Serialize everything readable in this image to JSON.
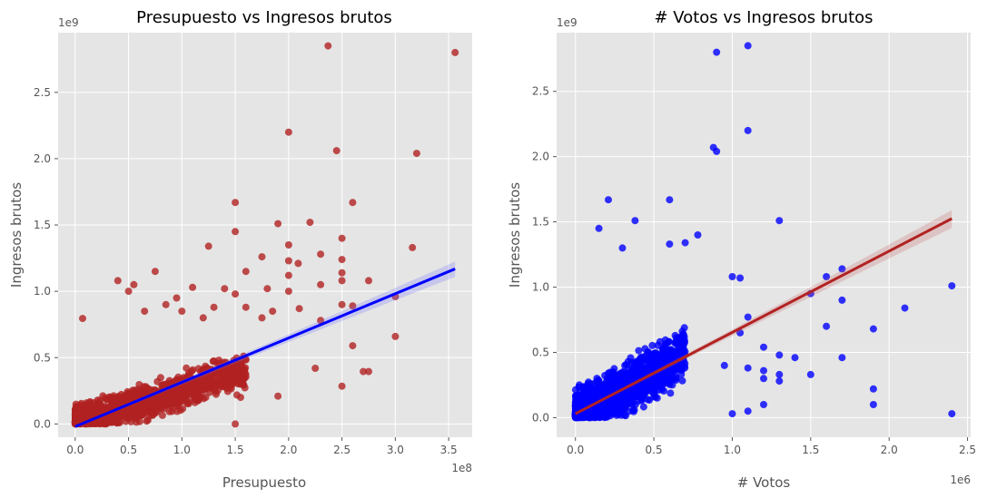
{
  "chart_data": [
    {
      "type": "scatter",
      "title": "Presupuesto vs Ingresos brutos",
      "xlabel": "Presupuesto",
      "ylabel": "Ingresos brutos",
      "x_offset_label": "1e8",
      "y_offset_label": "1e9",
      "x_scale": 100000000,
      "y_scale": 1000000000,
      "xlim": [
        -16000000,
        372000000
      ],
      "ylim": [
        -100000000,
        2950000000
      ],
      "x_ticks": [
        0,
        50000000,
        100000000,
        150000000,
        200000000,
        250000000,
        300000000,
        350000000
      ],
      "x_tick_labels": [
        "0.0",
        "0.5",
        "1.0",
        "1.5",
        "2.0",
        "2.5",
        "3.0",
        "3.5"
      ],
      "y_ticks": [
        0,
        500000000,
        1000000000,
        1500000000,
        2000000000,
        2500000000
      ],
      "y_tick_labels": [
        "0.0",
        "0.5",
        "1.0",
        "1.5",
        "2.0",
        "2.5"
      ],
      "grid": true,
      "point_color": "#b22222",
      "line_color": "#0000ff",
      "band_color": "#6e6eff",
      "cluster": {
        "n": 1500,
        "x_max": 160000000,
        "slope": 2.5,
        "noise": 120000000
      },
      "points": [
        {
          "x": 237000000,
          "y": 2850000000
        },
        {
          "x": 356000000,
          "y": 2800000000
        },
        {
          "x": 200000000,
          "y": 2200000000
        },
        {
          "x": 245000000,
          "y": 2060000000
        },
        {
          "x": 320000000,
          "y": 2040000000
        },
        {
          "x": 150000000,
          "y": 1670000000
        },
        {
          "x": 260000000,
          "y": 1670000000
        },
        {
          "x": 190000000,
          "y": 1510000000
        },
        {
          "x": 220000000,
          "y": 1520000000
        },
        {
          "x": 150000000,
          "y": 1450000000
        },
        {
          "x": 250000000,
          "y": 1400000000
        },
        {
          "x": 125000000,
          "y": 1340000000
        },
        {
          "x": 200000000,
          "y": 1350000000
        },
        {
          "x": 316000000,
          "y": 1330000000
        },
        {
          "x": 230000000,
          "y": 1280000000
        },
        {
          "x": 175000000,
          "y": 1260000000
        },
        {
          "x": 250000000,
          "y": 1240000000
        },
        {
          "x": 200000000,
          "y": 1230000000
        },
        {
          "x": 209000000,
          "y": 1210000000
        },
        {
          "x": 160000000,
          "y": 1150000000
        },
        {
          "x": 200000000,
          "y": 1120000000
        },
        {
          "x": 250000000,
          "y": 1140000000
        },
        {
          "x": 250000000,
          "y": 1080000000
        },
        {
          "x": 275000000,
          "y": 1080000000
        },
        {
          "x": 230000000,
          "y": 1050000000
        },
        {
          "x": 180000000,
          "y": 1020000000
        },
        {
          "x": 200000000,
          "y": 1000000000
        },
        {
          "x": 150000000,
          "y": 980000000
        },
        {
          "x": 300000000,
          "y": 960000000
        },
        {
          "x": 250000000,
          "y": 900000000
        },
        {
          "x": 260000000,
          "y": 890000000
        },
        {
          "x": 160000000,
          "y": 880000000
        },
        {
          "x": 210000000,
          "y": 870000000
        },
        {
          "x": 185000000,
          "y": 850000000
        },
        {
          "x": 175000000,
          "y": 800000000
        },
        {
          "x": 230000000,
          "y": 780000000
        },
        {
          "x": 7000000,
          "y": 795000000
        },
        {
          "x": 300000000,
          "y": 660000000
        },
        {
          "x": 260000000,
          "y": 590000000
        },
        {
          "x": 270000000,
          "y": 395000000
        },
        {
          "x": 275000000,
          "y": 395000000
        },
        {
          "x": 250000000,
          "y": 285000000
        },
        {
          "x": 225000000,
          "y": 420000000
        },
        {
          "x": 190000000,
          "y": 210000000
        },
        {
          "x": 155000000,
          "y": 200000000
        },
        {
          "x": 150000000,
          "y": 0
        },
        {
          "x": 40000000,
          "y": 1080000000
        },
        {
          "x": 75000000,
          "y": 1150000000
        },
        {
          "x": 95000000,
          "y": 950000000
        },
        {
          "x": 110000000,
          "y": 1030000000
        },
        {
          "x": 85000000,
          "y": 900000000
        },
        {
          "x": 130000000,
          "y": 880000000
        },
        {
          "x": 65000000,
          "y": 850000000
        },
        {
          "x": 55000000,
          "y": 1050000000
        },
        {
          "x": 100000000,
          "y": 850000000
        },
        {
          "x": 140000000,
          "y": 1020000000
        },
        {
          "x": 120000000,
          "y": 800000000
        },
        {
          "x": 50000000,
          "y": 1000000000
        }
      ],
      "regression": {
        "slope": 3.34,
        "intercept": -20000000,
        "x_min": 0,
        "x_max": 356000000
      }
    },
    {
      "type": "scatter",
      "title": "# Votos vs Ingresos brutos",
      "xlabel": "# Votos",
      "ylabel": "Ingresos brutos",
      "x_offset_label": "1e6",
      "y_offset_label": "1e9",
      "x_scale": 1000000,
      "y_scale": 1000000000,
      "xlim": [
        -120000,
        2520000
      ],
      "ylim": [
        -150000000,
        2950000000
      ],
      "x_ticks": [
        0,
        500000,
        1000000,
        1500000,
        2000000,
        2500000
      ],
      "x_tick_labels": [
        "0.0",
        "0.5",
        "1.0",
        "1.5",
        "2.0",
        "2.5"
      ],
      "y_ticks": [
        0,
        500000000,
        1000000000,
        1500000000,
        2000000000,
        2500000000
      ],
      "y_tick_labels": [
        "0.0",
        "0.5",
        "1.0",
        "1.5",
        "2.0",
        "2.5"
      ],
      "grid": true,
      "point_color": "#0000ff",
      "line_color": "#b22222",
      "band_color": "#c86464",
      "cluster": {
        "n": 1500,
        "x_max": 700000,
        "slope": 700,
        "noise": 180000000
      },
      "points": [
        {
          "x": 1100000,
          "y": 2850000000
        },
        {
          "x": 900000,
          "y": 2800000000
        },
        {
          "x": 1100000,
          "y": 2200000000
        },
        {
          "x": 880000,
          "y": 2070000000
        },
        {
          "x": 900000,
          "y": 2040000000
        },
        {
          "x": 210000,
          "y": 1670000000
        },
        {
          "x": 600000,
          "y": 1670000000
        },
        {
          "x": 1300000,
          "y": 1510000000
        },
        {
          "x": 380000,
          "y": 1510000000
        },
        {
          "x": 150000,
          "y": 1450000000
        },
        {
          "x": 780000,
          "y": 1400000000
        },
        {
          "x": 700000,
          "y": 1340000000
        },
        {
          "x": 600000,
          "y": 1330000000
        },
        {
          "x": 300000,
          "y": 1300000000
        },
        {
          "x": 1700000,
          "y": 1140000000
        },
        {
          "x": 1600000,
          "y": 1080000000
        },
        {
          "x": 2400000,
          "y": 1010000000
        },
        {
          "x": 1000000,
          "y": 1080000000
        },
        {
          "x": 1050000,
          "y": 1070000000
        },
        {
          "x": 1500000,
          "y": 950000000
        },
        {
          "x": 1700000,
          "y": 900000000
        },
        {
          "x": 2100000,
          "y": 840000000
        },
        {
          "x": 1100000,
          "y": 770000000
        },
        {
          "x": 1600000,
          "y": 700000000
        },
        {
          "x": 1900000,
          "y": 680000000
        },
        {
          "x": 1200000,
          "y": 540000000
        },
        {
          "x": 1300000,
          "y": 480000000
        },
        {
          "x": 1400000,
          "y": 460000000
        },
        {
          "x": 1700000,
          "y": 460000000
        },
        {
          "x": 1100000,
          "y": 380000000
        },
        {
          "x": 1200000,
          "y": 360000000
        },
        {
          "x": 1300000,
          "y": 330000000
        },
        {
          "x": 1500000,
          "y": 330000000
        },
        {
          "x": 1200000,
          "y": 300000000
        },
        {
          "x": 1300000,
          "y": 280000000
        },
        {
          "x": 1900000,
          "y": 220000000
        },
        {
          "x": 1900000,
          "y": 100000000
        },
        {
          "x": 1200000,
          "y": 100000000
        },
        {
          "x": 1100000,
          "y": 50000000
        },
        {
          "x": 2400000,
          "y": 30000000
        },
        {
          "x": 1000000,
          "y": 30000000
        },
        {
          "x": 950000,
          "y": 400000000
        },
        {
          "x": 1050000,
          "y": 650000000
        }
      ],
      "regression": {
        "slope": 623,
        "intercept": 30000000,
        "x_min": 0,
        "x_max": 2400000
      }
    }
  ]
}
